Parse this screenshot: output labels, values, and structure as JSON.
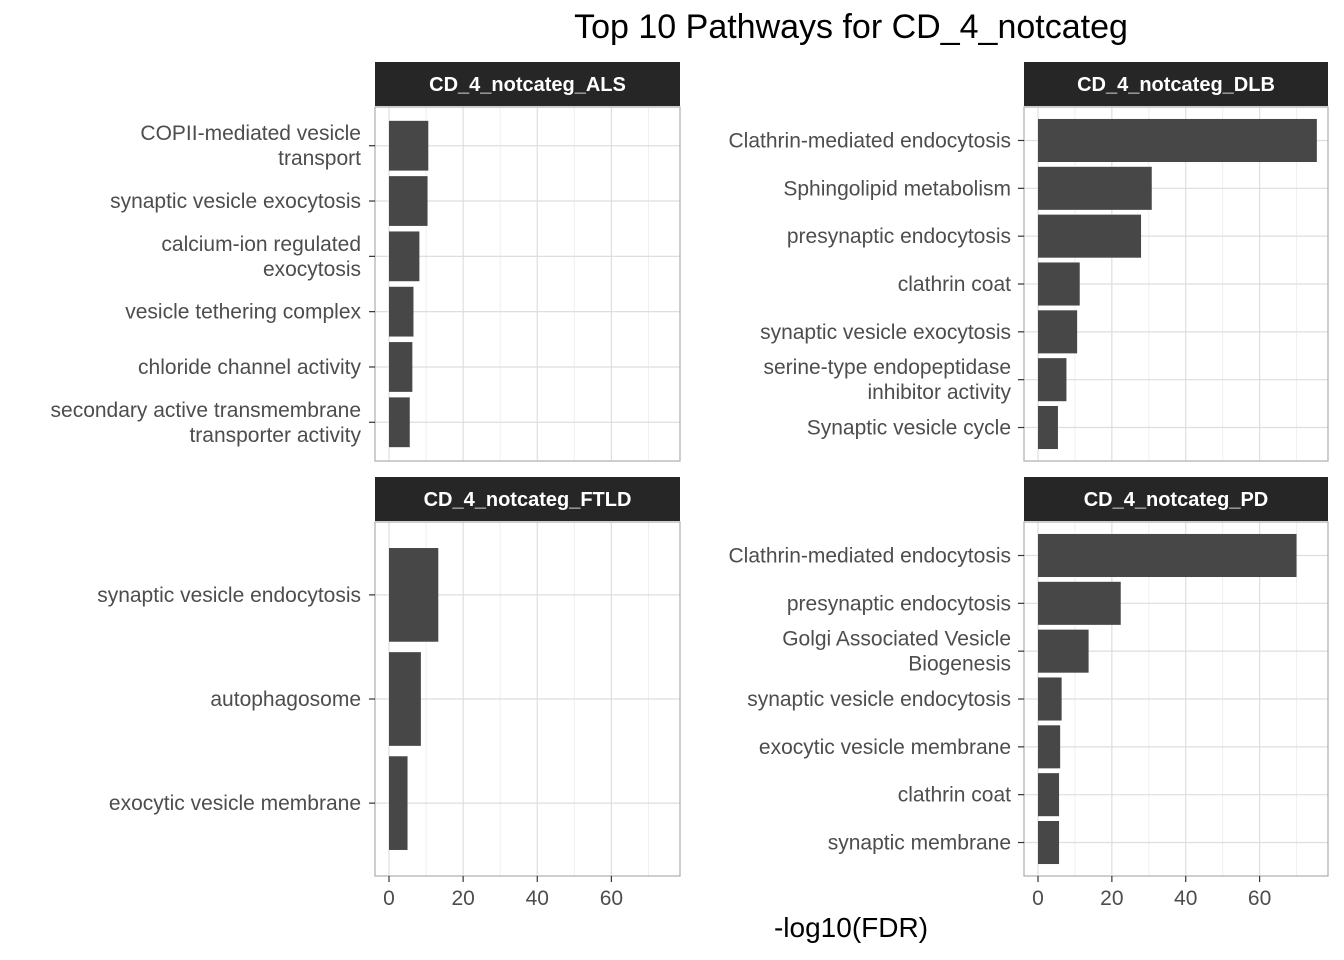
{
  "chart_data": {
    "type": "bar",
    "orientation": "horizontal",
    "title": "Top 10 Pathways for CD_4_notcateg",
    "xlabel": "-log10(FDR)",
    "ylabel": "",
    "xlim": [
      0,
      75
    ],
    "x_ticks": [
      "0",
      "20",
      "40",
      "60"
    ],
    "grid": true,
    "panels": [
      {
        "strip": "CD_4_notcateg_ALS",
        "categories": [
          [
            "COPII-mediated vesicle",
            "transport"
          ],
          [
            "synaptic vesicle exocytosis"
          ],
          [
            "calcium-ion regulated",
            "exocytosis"
          ],
          [
            "vesicle tethering complex"
          ],
          [
            "chloride channel activity"
          ],
          [
            "secondary active transmembrane",
            "transporter activity"
          ]
        ],
        "values": [
          10.6,
          10.4,
          8.2,
          6.6,
          6.3,
          5.6
        ]
      },
      {
        "strip": "CD_4_notcateg_DLB",
        "categories": [
          [
            "Clathrin-mediated endocytosis"
          ],
          [
            "Sphingolipid metabolism"
          ],
          [
            "presynaptic endocytosis"
          ],
          [
            "clathrin coat"
          ],
          [
            "synaptic vesicle exocytosis"
          ],
          [
            "serine-type endopeptidase",
            "inhibitor activity"
          ],
          [
            "Synaptic vesicle cycle"
          ]
        ],
        "values": [
          75.5,
          30.8,
          27.9,
          11.3,
          10.6,
          7.7,
          5.4
        ]
      },
      {
        "strip": "CD_4_notcateg_FTLD",
        "categories": [
          [
            "synaptic vesicle endocytosis"
          ],
          [
            "autophagosome"
          ],
          [
            "exocytic vesicle membrane"
          ]
        ],
        "values": [
          13.3,
          8.6,
          5.0
        ]
      },
      {
        "strip": "CD_4_notcateg_PD",
        "categories": [
          [
            "Clathrin-mediated endocytosis"
          ],
          [
            "presynaptic endocytosis"
          ],
          [
            "Golgi Associated Vesicle",
            "Biogenesis"
          ],
          [
            "synaptic vesicle endocytosis"
          ],
          [
            "exocytic vesicle membrane"
          ],
          [
            "clathrin coat"
          ],
          [
            "synaptic membrane"
          ]
        ],
        "values": [
          70.0,
          22.4,
          13.7,
          6.4,
          6.0,
          5.7,
          5.7
        ]
      }
    ]
  },
  "colors": {
    "bar": "#474747",
    "strip_fill": "#262626",
    "strip_text": "#ffffff",
    "grid_major": "#dedede",
    "grid_minor": "#efefef",
    "panel_border": "#b3b3b3",
    "axis_text": "#4d4d4d"
  }
}
